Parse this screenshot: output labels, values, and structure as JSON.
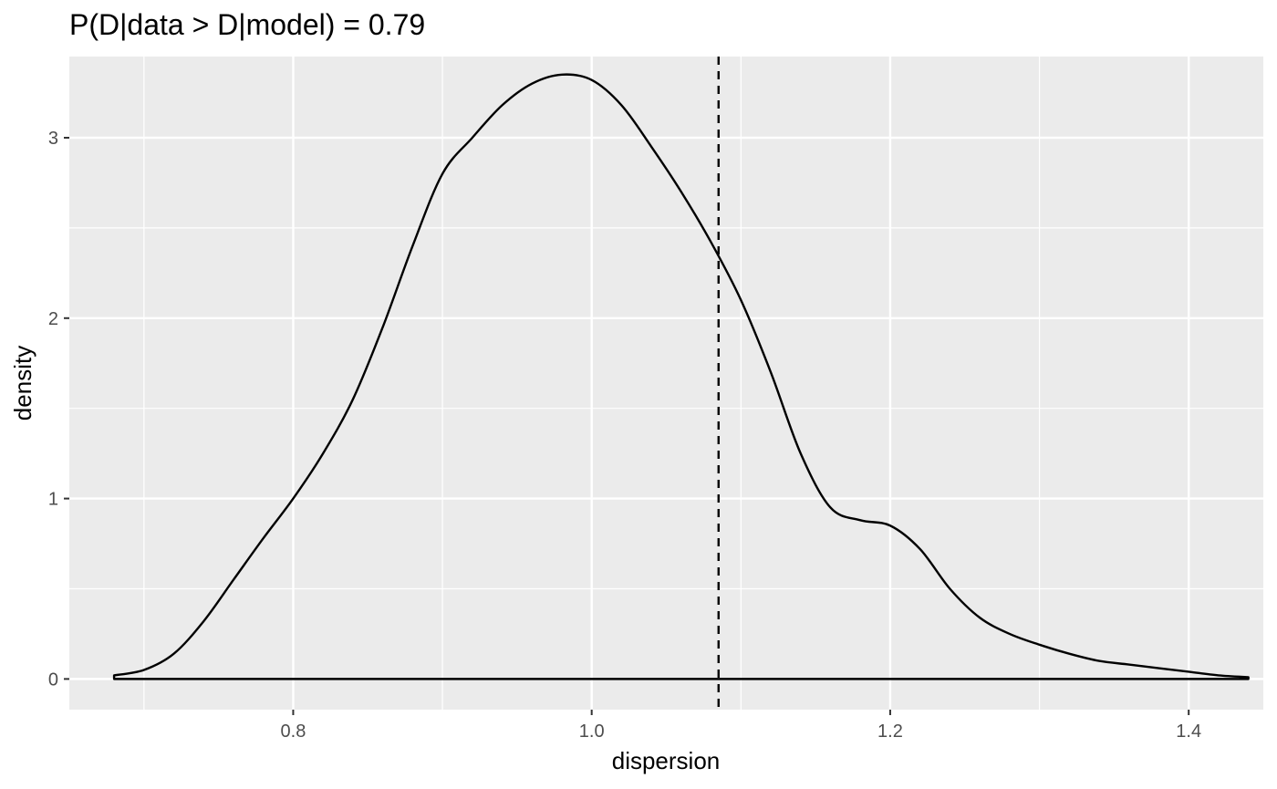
{
  "chart_data": {
    "type": "area",
    "title": "P(D|data > D|model) = 0.79",
    "xlabel": "dispersion",
    "ylabel": "density",
    "xlim": [
      0.65,
      1.45
    ],
    "ylim": [
      -0.17,
      3.45
    ],
    "x_ticks": [
      0.8,
      1.0,
      1.2,
      1.4
    ],
    "x_tick_labels": [
      "0.8",
      "1.0",
      "1.2",
      "1.4"
    ],
    "y_ticks": [
      0,
      1,
      2,
      3
    ],
    "y_tick_labels": [
      "0",
      "1",
      "2",
      "3"
    ],
    "grid": true,
    "panel_background": "#ebebeb",
    "grid_color": "#ffffff",
    "line_color": "#000000",
    "vline": {
      "x": 1.085,
      "style": "dashed"
    },
    "series": [
      {
        "x": [
          0.68,
          0.7,
          0.72,
          0.74,
          0.76,
          0.78,
          0.8,
          0.82,
          0.84,
          0.86,
          0.88,
          0.9,
          0.92,
          0.94,
          0.96,
          0.98,
          1.0,
          1.02,
          1.04,
          1.06,
          1.08,
          1.1,
          1.12,
          1.14,
          1.16,
          1.18,
          1.2,
          1.22,
          1.24,
          1.26,
          1.28,
          1.3,
          1.32,
          1.34,
          1.36,
          1.38,
          1.4,
          1.42,
          1.44
        ],
        "y": [
          0.02,
          0.05,
          0.14,
          0.32,
          0.55,
          0.78,
          1.0,
          1.25,
          1.55,
          1.95,
          2.4,
          2.8,
          3.0,
          3.18,
          3.3,
          3.35,
          3.32,
          3.18,
          2.95,
          2.7,
          2.42,
          2.1,
          1.7,
          1.25,
          0.95,
          0.88,
          0.85,
          0.72,
          0.5,
          0.34,
          0.25,
          0.19,
          0.14,
          0.1,
          0.08,
          0.06,
          0.04,
          0.02,
          0.01
        ]
      }
    ]
  }
}
